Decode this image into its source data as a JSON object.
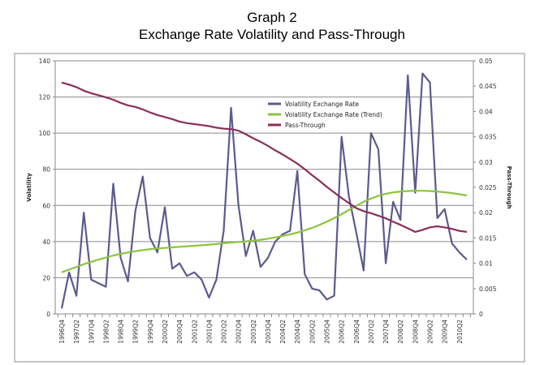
{
  "chart_data": {
    "type": "line",
    "title": "Graph 2",
    "subtitle": "Exchange Rate Volatility and Pass-Through",
    "xlabel": "",
    "ylabel": "Volatility",
    "y2label": "Pass-Through",
    "ylim": [
      0,
      140
    ],
    "y2lim": [
      0,
      0.05
    ],
    "yticks": [
      "0",
      "20",
      "40",
      "60",
      "80",
      "100",
      "120",
      "140"
    ],
    "y2ticks": [
      "0",
      "0.005",
      "0.01",
      "0.015",
      "0.02",
      "0.025",
      "0.03",
      "0.035",
      "0.04",
      "0.045",
      "0.05"
    ],
    "grid": true,
    "legend_position": "top-center",
    "x": [
      "1996Q4",
      "1997Q1",
      "1997Q2",
      "1997Q3",
      "1997Q4",
      "1998Q1",
      "1998Q2",
      "1998Q3",
      "1998Q4",
      "1999Q1",
      "1999Q2",
      "1999Q3",
      "1999Q4",
      "2000Q1",
      "2000Q2",
      "2000Q3",
      "2000Q4",
      "2001Q1",
      "2001Q2",
      "2001Q3",
      "2001Q4",
      "2002Q1",
      "2002Q2",
      "2002Q3",
      "2002Q4",
      "2003Q1",
      "2003Q2",
      "2003Q3",
      "2003Q4",
      "2004Q1",
      "2004Q2",
      "2004Q3",
      "2004Q4",
      "2005Q1",
      "2005Q2",
      "2005Q3",
      "2005Q4",
      "2006Q1",
      "2006Q2",
      "2006Q3",
      "2006Q4",
      "2007Q1",
      "2007Q2",
      "2007Q3",
      "2007Q4",
      "2008Q1",
      "2008Q2",
      "2008Q3",
      "2008Q4",
      "2009Q1",
      "2009Q2",
      "2009Q3",
      "2009Q4",
      "2010Q1",
      "2010Q2",
      "2010Q3"
    ],
    "x_tick_labels": [
      "1996Q4",
      "1997Q2",
      "1997Q4",
      "1998Q2",
      "1998Q4",
      "1999Q2",
      "1999Q4",
      "2000Q2",
      "2000Q4",
      "2001Q2",
      "2001Q4",
      "2002Q2",
      "2002Q4",
      "2003Q2",
      "2003Q4",
      "2004Q2",
      "2004Q4",
      "2005Q2",
      "2005Q4",
      "2006Q2",
      "2006Q4",
      "2007Q2",
      "2007Q4",
      "2008Q2",
      "2008Q4",
      "2009Q2",
      "2009Q4",
      "2010Q2"
    ],
    "series": [
      {
        "name": "Volatility Exchange Rate",
        "axis": "left",
        "color": "#5b5b8f",
        "values": [
          3,
          23,
          10,
          56,
          19,
          17,
          15,
          72,
          31,
          18,
          57,
          76,
          42,
          34,
          59,
          25,
          28,
          21,
          23,
          19,
          9,
          19,
          46,
          114,
          60,
          32,
          46,
          26,
          31,
          40,
          44,
          46,
          79,
          22,
          14,
          13,
          8,
          10,
          98,
          65,
          45,
          24,
          100,
          91,
          28,
          62,
          52,
          132,
          67,
          133,
          128,
          53,
          58,
          39,
          34,
          30
        ]
      },
      {
        "name": "Volatility Exchange Rate (Trend)",
        "axis": "left",
        "color": "#8cc43c",
        "values": [
          23,
          24.5,
          26,
          27.5,
          28.8,
          30,
          31.2,
          32.3,
          33.2,
          34,
          34.7,
          35.3,
          35.8,
          36.2,
          36.5,
          36.8,
          37.1,
          37.4,
          37.7,
          38,
          38.3,
          38.7,
          39.1,
          39.5,
          39.8,
          40.1,
          40.5,
          41,
          41.6,
          42.3,
          43.1,
          44,
          45,
          46.2,
          47.6,
          49.2,
          51,
          53,
          55.2,
          57.5,
          59.8,
          62,
          63.8,
          65.3,
          66.4,
          67.2,
          67.7,
          68,
          68.1,
          68.1,
          68,
          67.7,
          67.3,
          66.8,
          66.2,
          65.5
        ]
      },
      {
        "name": "Pass-Through",
        "axis": "right",
        "color": "#8b2e5a",
        "values": [
          0.0457,
          0.0453,
          0.0448,
          0.0441,
          0.0436,
          0.0432,
          0.0428,
          0.0423,
          0.0417,
          0.0412,
          0.0409,
          0.0404,
          0.0398,
          0.0393,
          0.0389,
          0.0385,
          0.038,
          0.0377,
          0.0375,
          0.0373,
          0.0371,
          0.0368,
          0.0366,
          0.0365,
          0.0362,
          0.0355,
          0.0347,
          0.034,
          0.0332,
          0.0323,
          0.0315,
          0.0306,
          0.0297,
          0.0286,
          0.0274,
          0.0263,
          0.0251,
          0.024,
          0.0229,
          0.0219,
          0.0209,
          0.0203,
          0.0199,
          0.0194,
          0.0189,
          0.0182,
          0.0176,
          0.0169,
          0.0162,
          0.0166,
          0.0171,
          0.0173,
          0.0171,
          0.0168,
          0.0164,
          0.0162
        ]
      }
    ]
  }
}
